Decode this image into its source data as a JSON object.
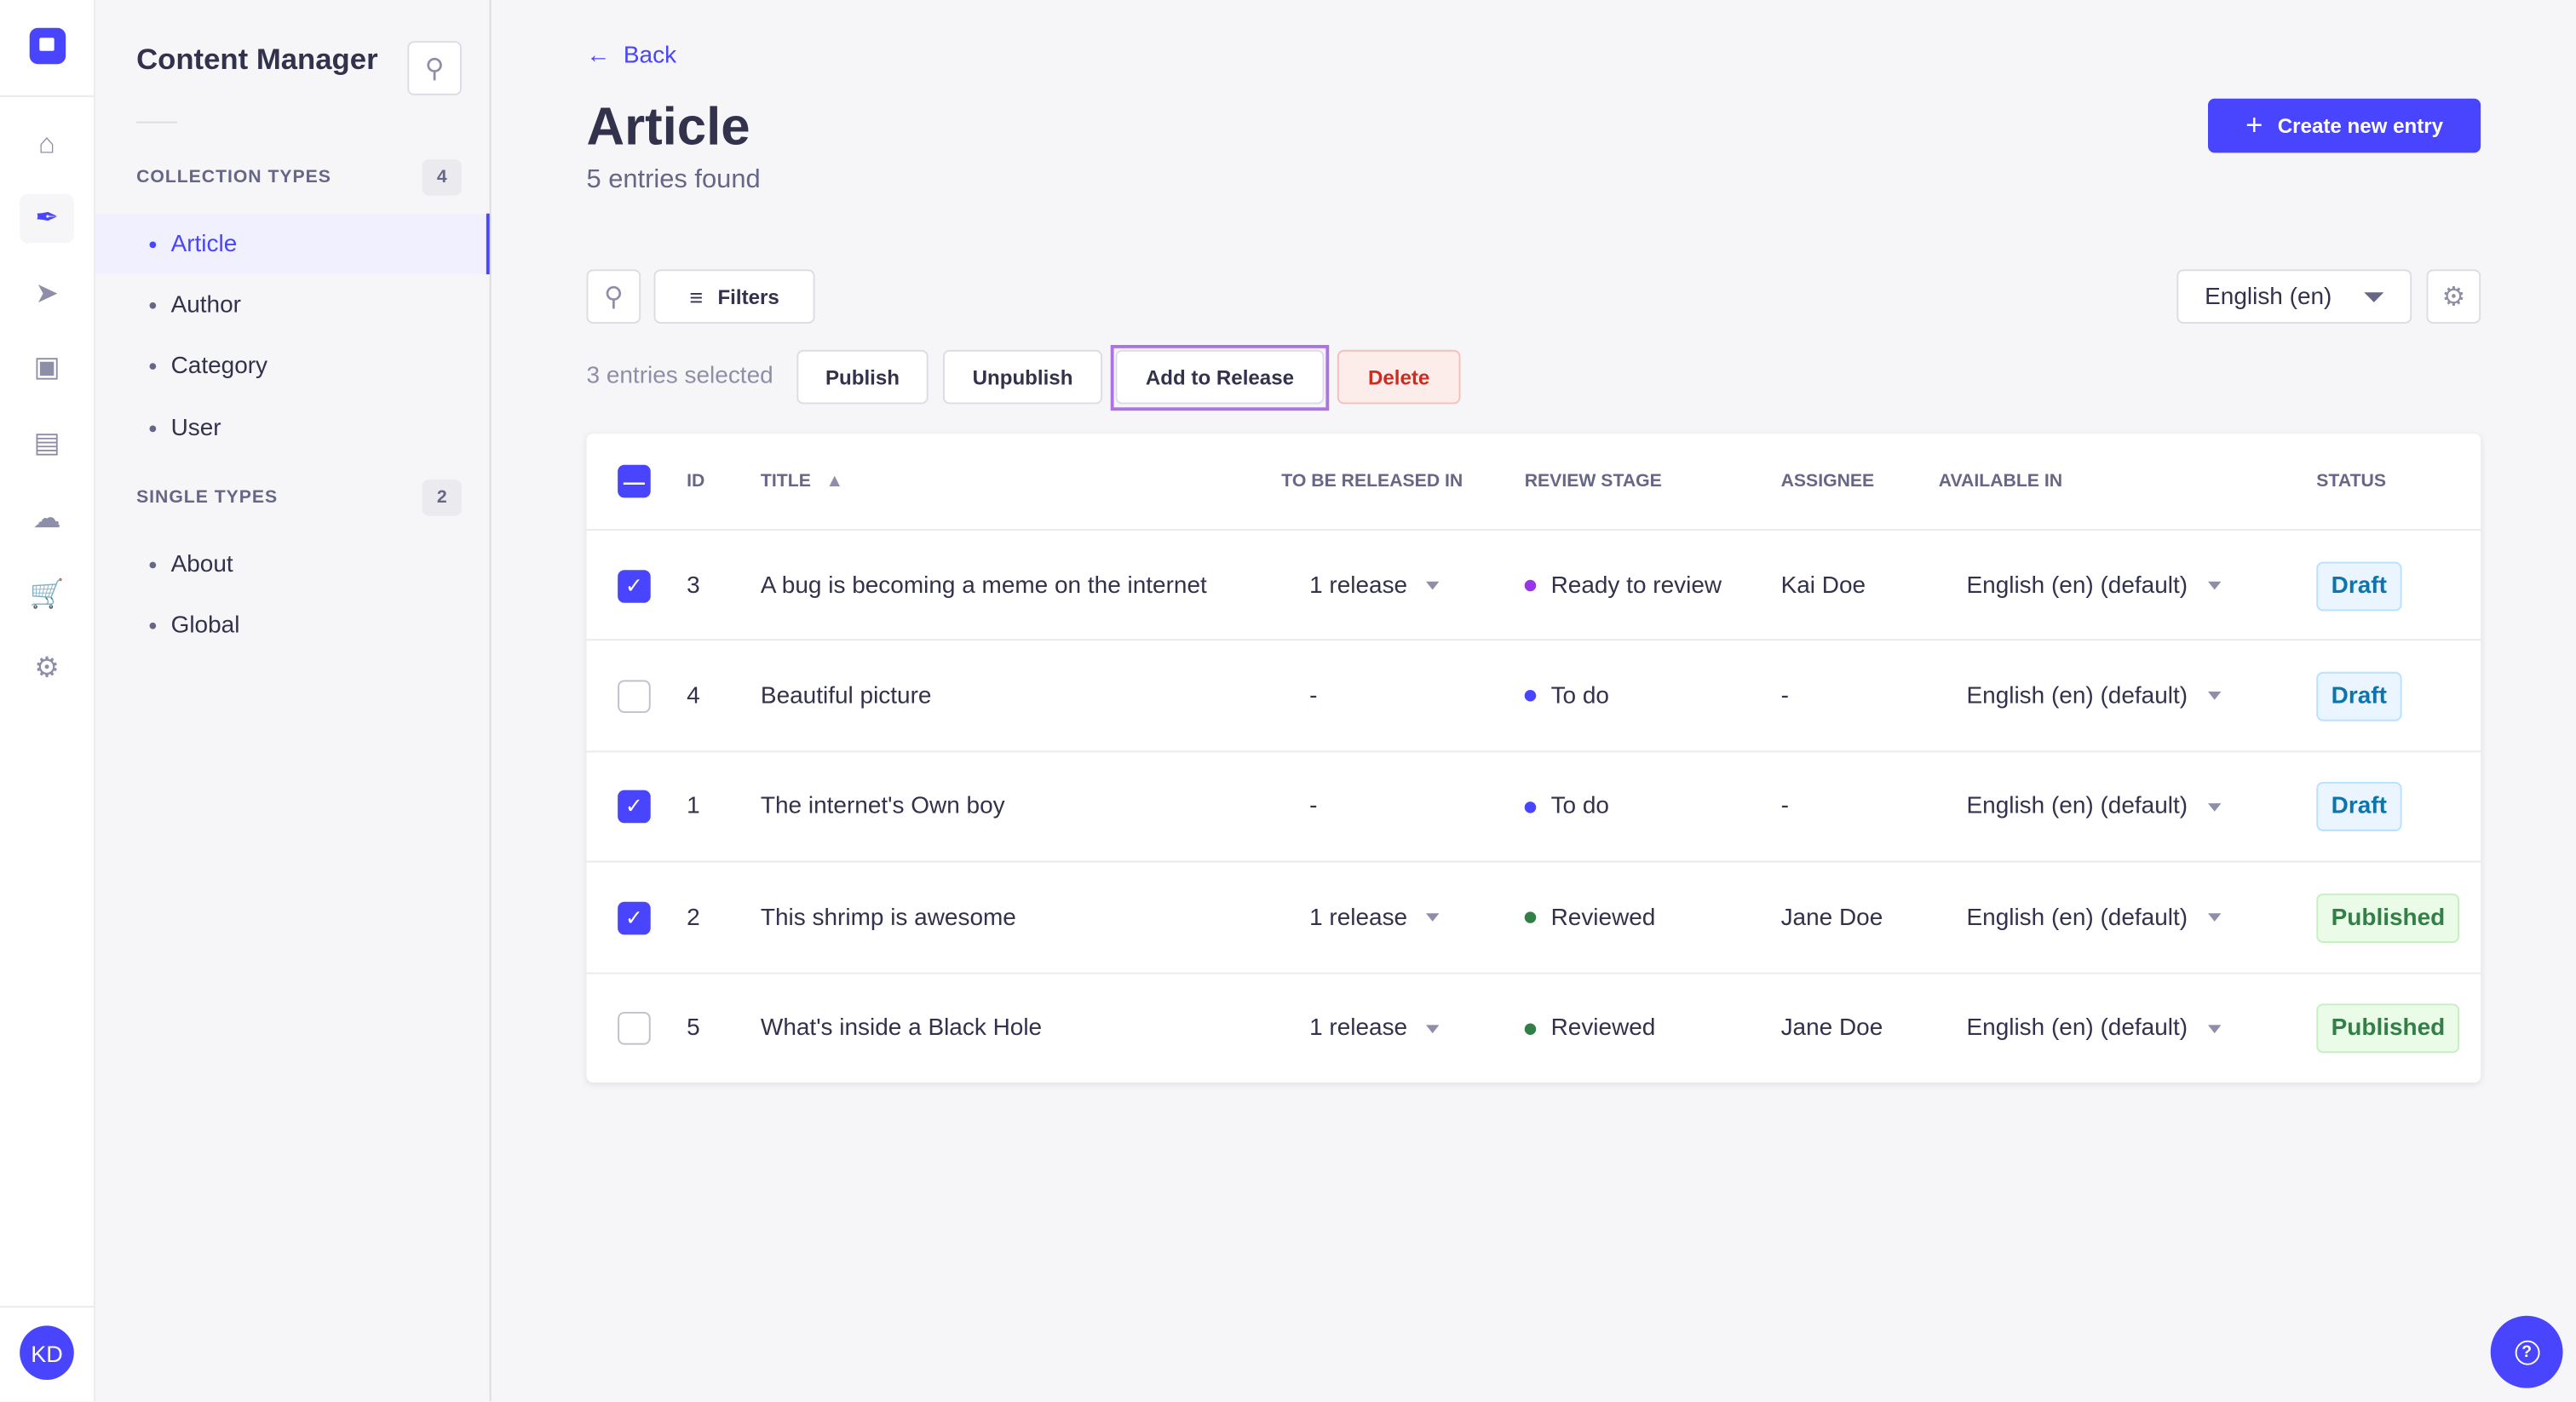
{
  "nav": {
    "avatar": "KD",
    "icons": [
      "home-icon",
      "content-manager-feather-icon",
      "releases-paper-plane-icon",
      "media-library-icon",
      "content-type-builder-layout-icon",
      "cloud-icon",
      "marketplace-cart-icon",
      "settings-gear-icon"
    ],
    "active": 1,
    "accent": "#4945ff"
  },
  "sidebar": {
    "title": "Content Manager",
    "collection_label": "COLLECTION TYPES",
    "collection_count": "4",
    "collection_items": [
      "Article",
      "Author",
      "Category",
      "User"
    ],
    "single_label": "SINGLE TYPES",
    "single_count": "2",
    "single_items": [
      "About",
      "Global"
    ],
    "active": "Article"
  },
  "header": {
    "back": "Back",
    "title": "Article",
    "subtitle": "5 entries found",
    "create": "Create new entry"
  },
  "toolbar": {
    "filters": "Filters",
    "locale": "English (en)"
  },
  "bulk": {
    "selected": "3 entries selected",
    "publish": "Publish",
    "unpublish": "Unpublish",
    "add_to_release": "Add to Release",
    "delete": "Delete"
  },
  "table": {
    "columns": [
      "ID",
      "TITLE",
      "TO BE RELEASED IN",
      "REVIEW STAGE",
      "ASSIGNEE",
      "AVAILABLE IN",
      "STATUS"
    ],
    "sort": "TITLE ascending",
    "rows": [
      {
        "checked": true,
        "id": "3",
        "title": "A bug is becoming a meme on the internet",
        "release": "1 release",
        "stage": "Ready to review",
        "stage_color": "#9736e8",
        "assignee": "Kai Doe",
        "available": "English (en) (default)",
        "status": "Draft"
      },
      {
        "checked": false,
        "id": "4",
        "title": "Beautiful picture",
        "release": "-",
        "stage": "To do",
        "stage_color": "#4945ff",
        "assignee": "-",
        "available": "English (en) (default)",
        "status": "Draft"
      },
      {
        "checked": true,
        "id": "1",
        "title": "The internet's Own boy",
        "release": "-",
        "stage": "To do",
        "stage_color": "#4945ff",
        "assignee": "-",
        "available": "English (en) (default)",
        "status": "Draft"
      },
      {
        "checked": true,
        "id": "2",
        "title": "This shrimp is awesome",
        "release": "1 release",
        "stage": "Reviewed",
        "stage_color": "#328048",
        "assignee": "Jane Doe",
        "available": "English (en) (default)",
        "status": "Published"
      },
      {
        "checked": false,
        "id": "5",
        "title": "What's inside a Black Hole",
        "release": "1 release",
        "stage": "Reviewed",
        "stage_color": "#328048",
        "assignee": "Jane Doe",
        "available": "English (en) (default)",
        "status": "Published"
      }
    ]
  }
}
